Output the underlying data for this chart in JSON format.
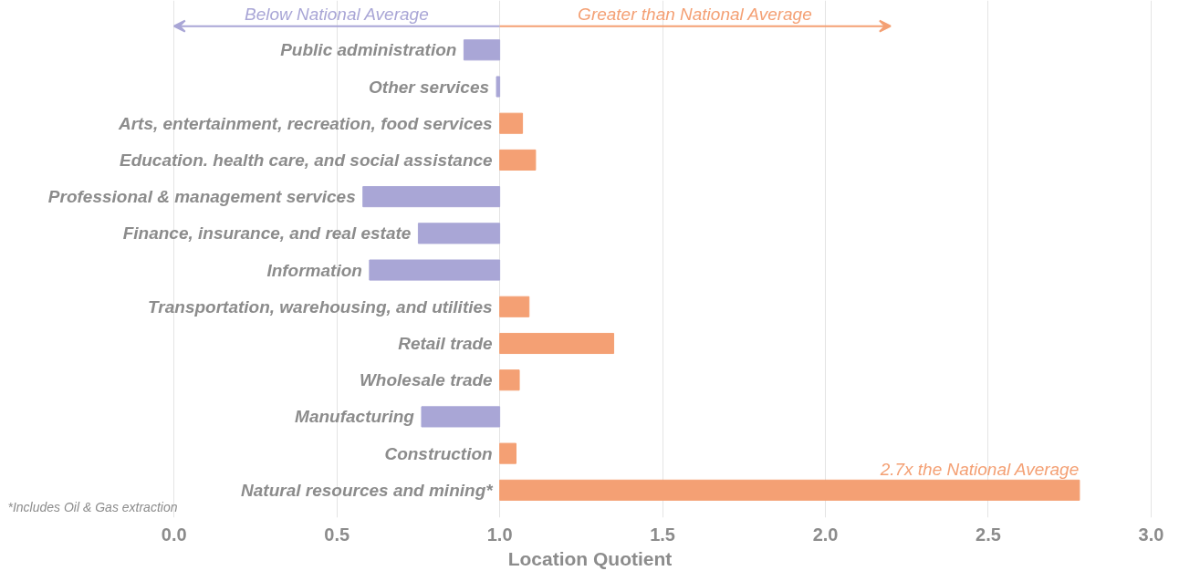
{
  "chart_data": {
    "type": "bar",
    "orientation": "horizontal",
    "xlabel": "Location Quotient",
    "categories": [
      "Public administration",
      "Other services",
      "Arts, entertainment, recreation, food services",
      "Education. health care, and social assistance",
      "Professional & management services",
      "Finance, insurance, and real estate",
      "Information",
      "Transportation, warehousing, and utilities",
      "Retail trade",
      "Wholesale trade",
      "Manufacturing",
      "Construction",
      "Natural resources and mining*"
    ],
    "base": [
      1.0,
      1.0,
      1.0,
      1.0,
      1.0,
      1.0,
      1.0,
      1.0,
      1.0,
      1.0,
      1.0,
      1.0,
      1.0
    ],
    "values": [
      -0.11,
      -0.01,
      0.07,
      0.11,
      -0.42,
      -0.25,
      -0.4,
      0.09,
      0.35,
      0.06,
      -0.24,
      0.05,
      1.78
    ],
    "colors": [
      "#a9a6d6",
      "#a9a6d6",
      "#f4a074",
      "#f4a074",
      "#a9a6d6",
      "#a9a6d6",
      "#a9a6d6",
      "#f4a074",
      "#f4a074",
      "#f4a074",
      "#a9a6d6",
      "#f4a074",
      "#f4a074"
    ],
    "xlim": [
      0,
      3
    ],
    "xticks": [
      {
        "value": 0,
        "label": "0.0"
      },
      0.5,
      {
        "value": 1,
        "label": "1.0"
      },
      1.5,
      {
        "value": 2,
        "label": "2.0"
      },
      2.5,
      {
        "value": 3,
        "label": "3.0"
      }
    ],
    "grid": "x",
    "annotations": [
      "Below National Average",
      "Greater than National Average",
      {
        "text": "2.7x the National Average",
        "x": 2.78,
        "y": "Natural resources and mining*"
      },
      "*Includes Oil & Gas extraction"
    ]
  }
}
